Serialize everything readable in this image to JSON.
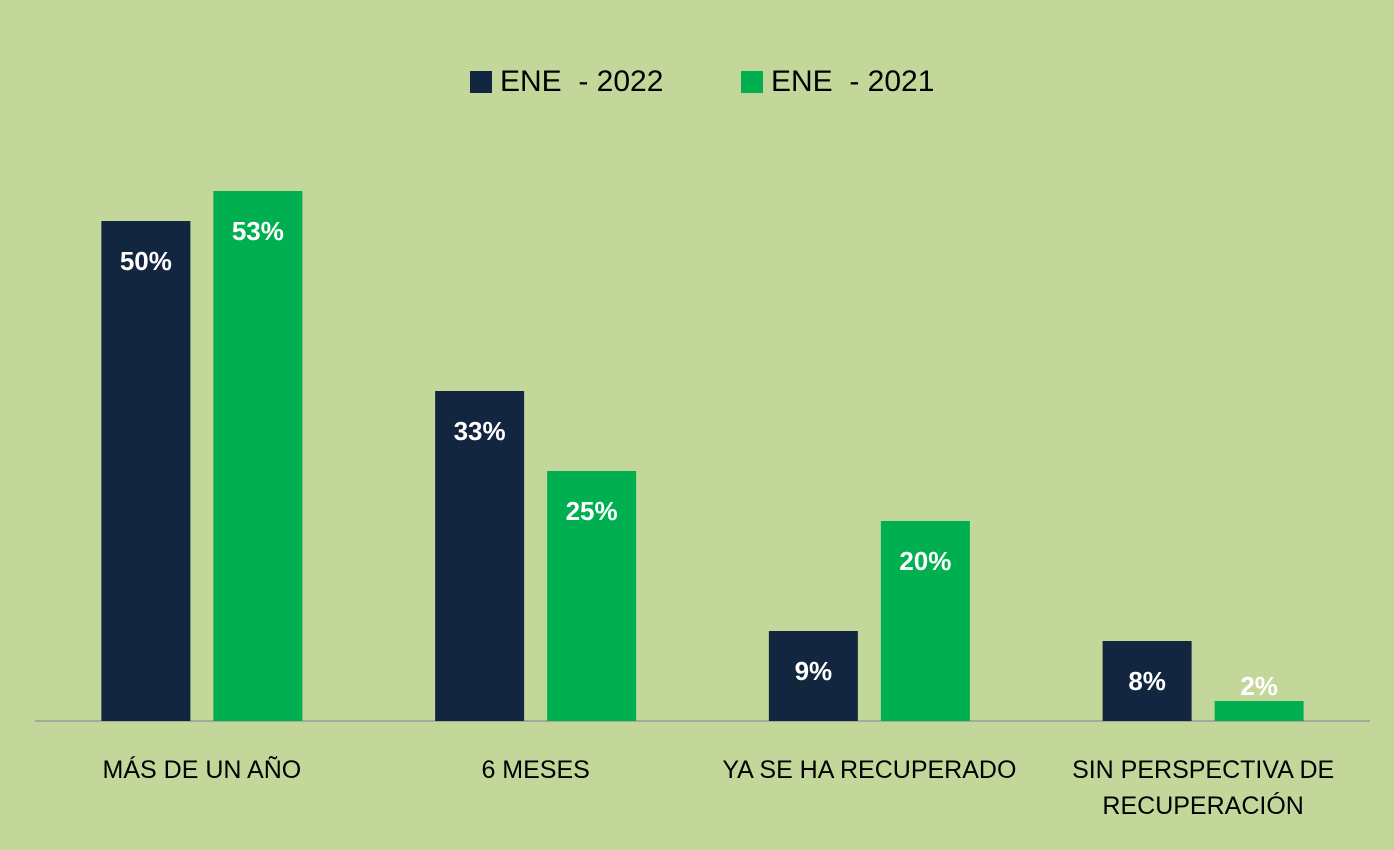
{
  "chart_data": {
    "type": "bar",
    "categories": [
      "MÁS DE UN AÑO",
      "6 MESES",
      "YA SE HA RECUPERADO",
      "SIN PERSPECTIVA DE RECUPERACIÓN"
    ],
    "series": [
      {
        "name": "ENE  - 2022",
        "color": "#13263f",
        "values": [
          50,
          33,
          9,
          8
        ],
        "value_labels": [
          "50%",
          "33%",
          "9%",
          "8%"
        ]
      },
      {
        "name": "ENE  - 2021",
        "color": "#00b050",
        "values": [
          53,
          25,
          20,
          2
        ],
        "value_labels": [
          "53%",
          "25%",
          "20%",
          "2%"
        ]
      }
    ],
    "legend": "top"
  }
}
